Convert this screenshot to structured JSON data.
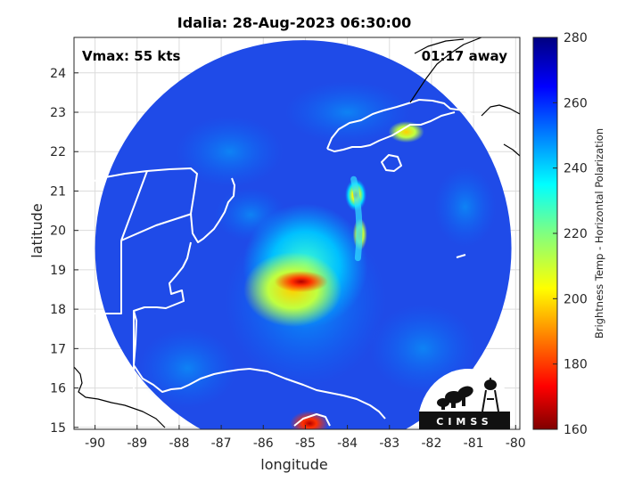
{
  "chart_data": {
    "type": "heatmap",
    "title": "Idalia: 28-Aug-2023 06:30:00",
    "xlabel": "longitude",
    "ylabel": "latitude",
    "xlim": [
      -90.5,
      -79.9
    ],
    "ylim": [
      14.95,
      24.9
    ],
    "xticks": [
      -90,
      -89,
      -88,
      -87,
      -86,
      -85,
      -84,
      -83,
      -82,
      -81,
      -80
    ],
    "yticks": [
      15,
      16,
      17,
      18,
      19,
      20,
      21,
      22,
      23,
      24
    ],
    "grid": true,
    "annotations": {
      "vmax": "Vmax: 55 kts",
      "time_away": "01:17 away"
    },
    "logo_text": "CIMSS",
    "colorbar": {
      "label": "Brightness Temp - Horizontal Polarization",
      "range": [
        160,
        280
      ],
      "ticks": [
        160,
        180,
        200,
        220,
        240,
        260,
        280
      ],
      "colormap": [
        "#7f0000",
        "#ff0000",
        "#ff8000",
        "#ffff00",
        "#80ff80",
        "#00ffff",
        "#0080ff",
        "#0000ff",
        "#000080"
      ]
    },
    "swath": {
      "center": [
        -85.05,
        19.55
      ],
      "radius_deg": 4.95,
      "background_temp": 262
    },
    "features": [
      {
        "name": "inner core",
        "lon": -85.1,
        "lat": 18.7,
        "temp": 185
      },
      {
        "name": "core ring",
        "lon": -85.3,
        "lat": 18.5,
        "temp": 215
      },
      {
        "name": "outer band",
        "lon": -85.0,
        "lat": 19.1,
        "temp": 240
      },
      {
        "name": "rainband north",
        "lon": -83.8,
        "lat": 20.9,
        "temp": 205
      },
      {
        "name": "rainband mid",
        "lon": -83.7,
        "lat": 19.9,
        "temp": 215
      },
      {
        "name": "south cell",
        "lon": -84.9,
        "lat": 15.1,
        "temp": 170
      },
      {
        "name": "west cuba cell",
        "lon": -82.6,
        "lat": 22.5,
        "temp": 225
      }
    ]
  }
}
